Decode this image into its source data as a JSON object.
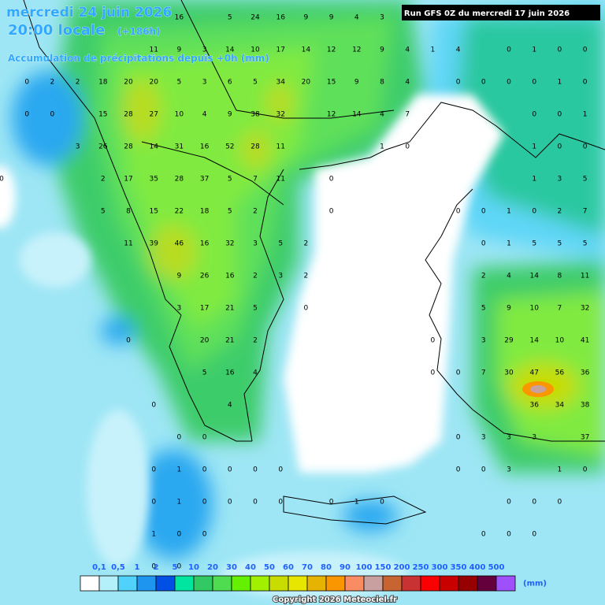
{
  "header": {
    "date": "mercredi 24 juin 2026",
    "time": "20:00 locale",
    "lead": "(+186h)",
    "subtitle": "Accumulation de précipitations depuis +0h (mm)",
    "run": "Run GFS 0Z du mercredi 17 juin 2026"
  },
  "map": {
    "rows": [
      [
        null,
        null,
        null,
        null,
        null,
        null,
        null,
        16,
        null,
        5,
        24,
        16,
        9,
        9,
        4,
        3,
        null,
        null,
        null,
        null,
        null,
        null,
        null,
        null
      ],
      [
        null,
        null,
        null,
        null,
        null,
        null,
        11,
        9,
        3,
        14,
        10,
        17,
        14,
        12,
        12,
        9,
        4,
        1,
        4,
        null,
        0,
        1,
        0,
        0
      ],
      [
        null,
        0,
        2,
        2,
        18,
        20,
        20,
        5,
        3,
        6,
        5,
        34,
        20,
        15,
        9,
        8,
        4,
        null,
        0,
        0,
        0,
        0,
        1,
        0
      ],
      [
        null,
        0,
        0,
        null,
        15,
        28,
        27,
        10,
        4,
        9,
        38,
        32,
        null,
        12,
        14,
        4,
        7,
        null,
        null,
        null,
        null,
        0,
        0,
        1
      ],
      [
        null,
        null,
        null,
        3,
        26,
        28,
        14,
        31,
        16,
        52,
        28,
        11,
        null,
        null,
        null,
        1,
        0,
        null,
        null,
        null,
        null,
        1,
        0,
        0
      ],
      [
        0,
        null,
        null,
        null,
        2,
        17,
        35,
        28,
        37,
        5,
        7,
        11,
        null,
        0,
        null,
        null,
        null,
        null,
        null,
        null,
        null,
        1,
        3,
        5
      ],
      [
        null,
        null,
        null,
        null,
        5,
        8,
        15,
        22,
        18,
        5,
        2,
        null,
        null,
        0,
        null,
        null,
        null,
        null,
        0,
        0,
        1,
        0,
        2,
        7
      ],
      [
        null,
        null,
        null,
        null,
        null,
        11,
        39,
        46,
        16,
        32,
        3,
        5,
        2,
        null,
        null,
        null,
        null,
        null,
        null,
        0,
        1,
        5,
        5,
        5
      ],
      [
        null,
        null,
        null,
        null,
        null,
        null,
        null,
        9,
        26,
        16,
        2,
        3,
        2,
        null,
        null,
        null,
        null,
        null,
        null,
        2,
        4,
        14,
        8,
        11
      ],
      [
        null,
        null,
        null,
        null,
        null,
        null,
        null,
        3,
        17,
        21,
        5,
        null,
        0,
        null,
        null,
        null,
        null,
        null,
        null,
        5,
        9,
        10,
        7,
        32
      ],
      [
        null,
        null,
        null,
        null,
        null,
        0,
        null,
        null,
        20,
        21,
        2,
        null,
        null,
        null,
        null,
        null,
        null,
        0,
        null,
        3,
        29,
        14,
        10,
        41
      ],
      [
        null,
        null,
        null,
        null,
        null,
        null,
        null,
        null,
        5,
        16,
        4,
        null,
        null,
        null,
        null,
        null,
        null,
        0,
        0,
        7,
        30,
        47,
        56,
        36
      ],
      [
        null,
        null,
        null,
        null,
        null,
        null,
        0,
        null,
        null,
        4,
        null,
        null,
        null,
        null,
        null,
        null,
        null,
        null,
        null,
        null,
        null,
        36,
        34,
        38
      ],
      [
        null,
        null,
        null,
        null,
        null,
        null,
        null,
        0,
        0,
        null,
        null,
        null,
        null,
        null,
        null,
        null,
        null,
        null,
        0,
        3,
        3,
        3,
        null,
        37
      ],
      [
        null,
        null,
        null,
        null,
        null,
        null,
        0,
        1,
        0,
        0,
        0,
        0,
        null,
        null,
        null,
        null,
        null,
        null,
        0,
        0,
        3,
        null,
        1,
        0
      ],
      [
        null,
        null,
        null,
        null,
        null,
        null,
        0,
        1,
        0,
        0,
        0,
        0,
        null,
        0,
        1,
        0,
        null,
        null,
        null,
        null,
        0,
        0,
        0,
        null
      ],
      [
        null,
        null,
        null,
        null,
        null,
        null,
        1,
        0,
        0,
        null,
        null,
        null,
        null,
        null,
        null,
        null,
        null,
        null,
        null,
        0,
        0,
        0,
        null,
        null
      ],
      [
        null,
        null,
        null,
        null,
        null,
        null,
        0,
        0,
        null,
        null,
        null,
        null,
        null,
        null,
        null,
        null,
        null,
        null,
        null,
        null,
        null,
        null,
        null,
        null
      ]
    ]
  },
  "legend": {
    "labels": [
      "0,1",
      "0,5",
      "1",
      "2",
      "5",
      "10",
      "20",
      "30",
      "40",
      "50",
      "60",
      "70",
      "80",
      "90",
      "100",
      "150",
      "200",
      "250",
      "300",
      "350",
      "400",
      "500"
    ],
    "unit": "(mm)",
    "colors": [
      "#ffffff",
      "#b4f0fa",
      "#50d2fa",
      "#1e96f0",
      "#0050e6",
      "#00e6a0",
      "#32c864",
      "#50dc50",
      "#64f000",
      "#a0f000",
      "#c8dc00",
      "#e6e600",
      "#e6b400",
      "#fa9600",
      "#fa8c64",
      "#c8a0a0",
      "#c86432",
      "#c83232",
      "#fa0000",
      "#c80000",
      "#960000",
      "#64003c",
      "#a050fa"
    ]
  },
  "footer": {
    "copyright": "Copyright 2026 Meteociel.fr"
  }
}
